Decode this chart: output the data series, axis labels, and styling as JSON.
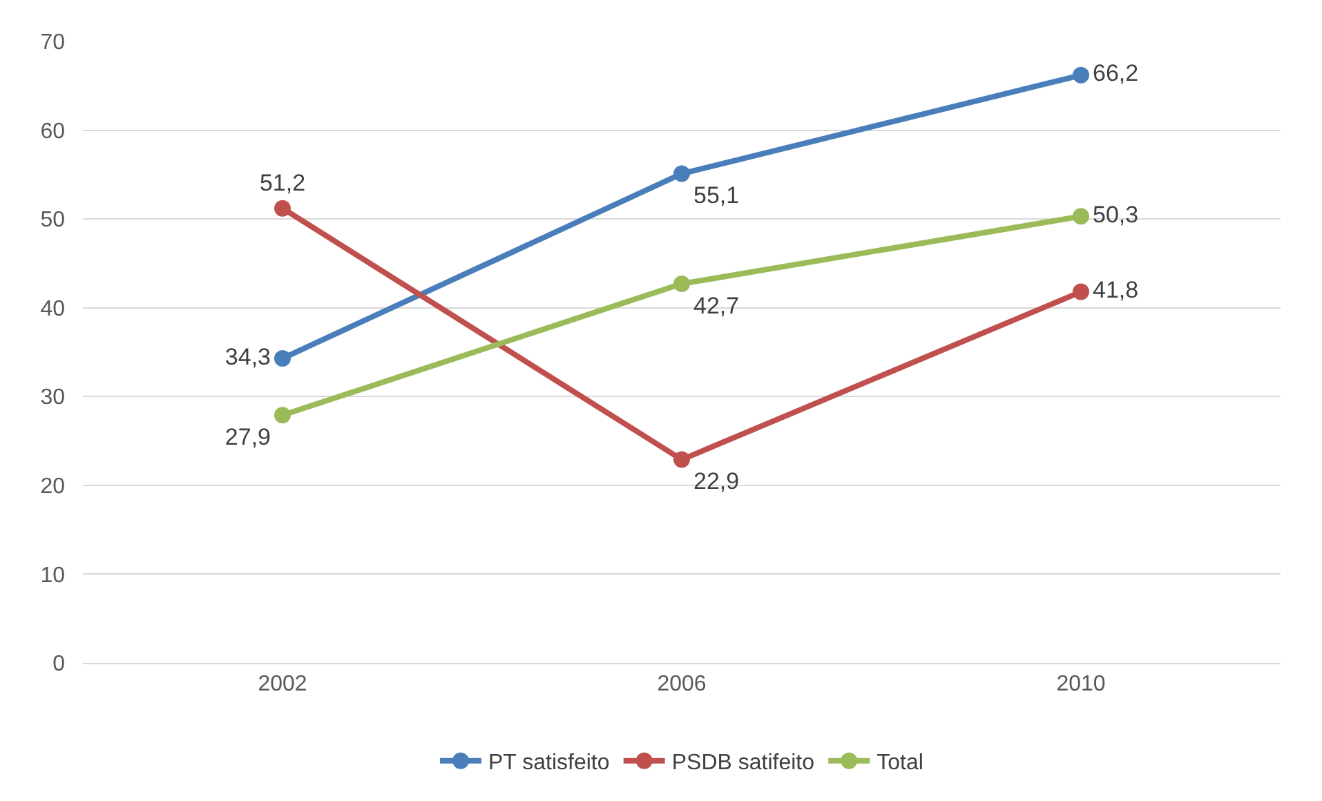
{
  "chart_data": {
    "type": "line",
    "categories": [
      "2002",
      "2006",
      "2010"
    ],
    "series": [
      {
        "name": "PT satisfeito",
        "color": "#4a7ebb",
        "values": [
          34.3,
          55.1,
          66.2
        ],
        "value_labels": [
          "34,3",
          "55,1",
          "66,2"
        ]
      },
      {
        "name": "PSDB satifeito",
        "color": "#c0504d",
        "values": [
          51.2,
          22.9,
          41.8
        ],
        "value_labels": [
          "51,2",
          "22,9",
          "41,8"
        ]
      },
      {
        "name": "Total",
        "color": "#9bbb59",
        "values": [
          27.9,
          42.7,
          50.3
        ],
        "value_labels": [
          "27,9",
          "42,7",
          "50,3"
        ]
      }
    ],
    "ylim": [
      0,
      70
    ],
    "yticks": [
      0,
      10,
      20,
      30,
      40,
      50,
      60,
      70
    ],
    "grid": "y",
    "legend": "bottom",
    "marker": "circle",
    "line_style": "solid"
  }
}
